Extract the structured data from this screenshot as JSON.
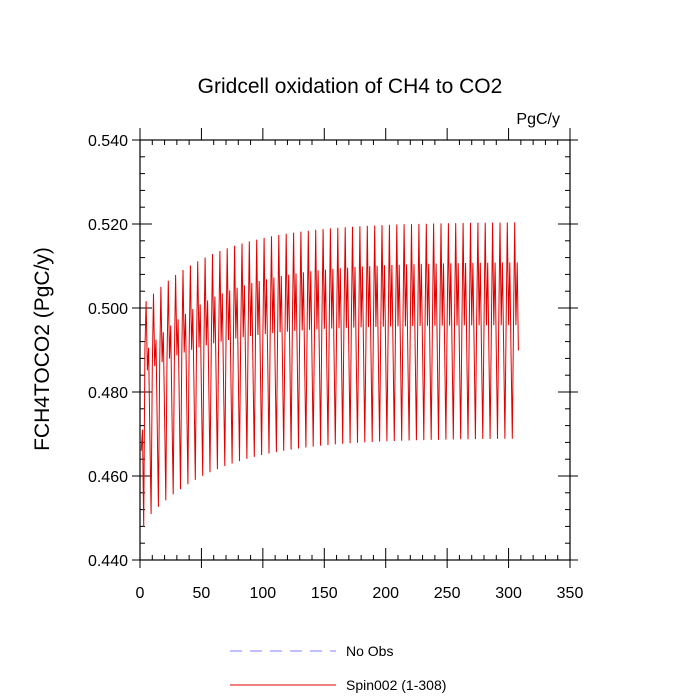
{
  "chart_data": {
    "type": "line",
    "title": "Gridcell oxidation of CH4 to CO2",
    "units_label": "PgC/y",
    "xlabel": "",
    "ylabel": "FCH4TOCO2  (PgC/y)",
    "xlim": [
      0,
      350
    ],
    "ylim": [
      0.44,
      0.54
    ],
    "x_ticks": [
      0,
      50,
      100,
      150,
      200,
      250,
      300,
      350
    ],
    "x_tick_labels": [
      "0",
      "50",
      "100",
      "150",
      "200",
      "250",
      "300",
      "350"
    ],
    "y_ticks": [
      0.44,
      0.46,
      0.48,
      0.5,
      0.52,
      0.54
    ],
    "y_tick_labels": [
      "0.440",
      "0.460",
      "0.480",
      "0.500",
      "0.520",
      "0.540"
    ],
    "grid": false,
    "legend_position": "bottom-center",
    "series": [
      {
        "name": "No Obs",
        "style": "dashed",
        "color": "#8080ff",
        "values": []
      },
      {
        "name": "Spin002 (1-308)",
        "style": "solid",
        "color": "#e00000",
        "x_range": [
          1,
          308
        ],
        "cycle_length_years": 6,
        "annual_min": {
          "start": 0.448,
          "asymptote": 0.469,
          "efold_years": 60
        },
        "annual_max": {
          "start": 0.5,
          "asymptote": 0.5205,
          "efold_years": 60
        },
        "secondary_peak": {
          "start": 0.488,
          "asymptote": 0.511,
          "efold_years": 60
        },
        "shoulder_value": {
          "start": 0.484,
          "asymptote": 0.496,
          "efold_years": 60
        },
        "initial_values": [
          0.466,
          0.471,
          0.448,
          0.49
        ]
      }
    ]
  }
}
